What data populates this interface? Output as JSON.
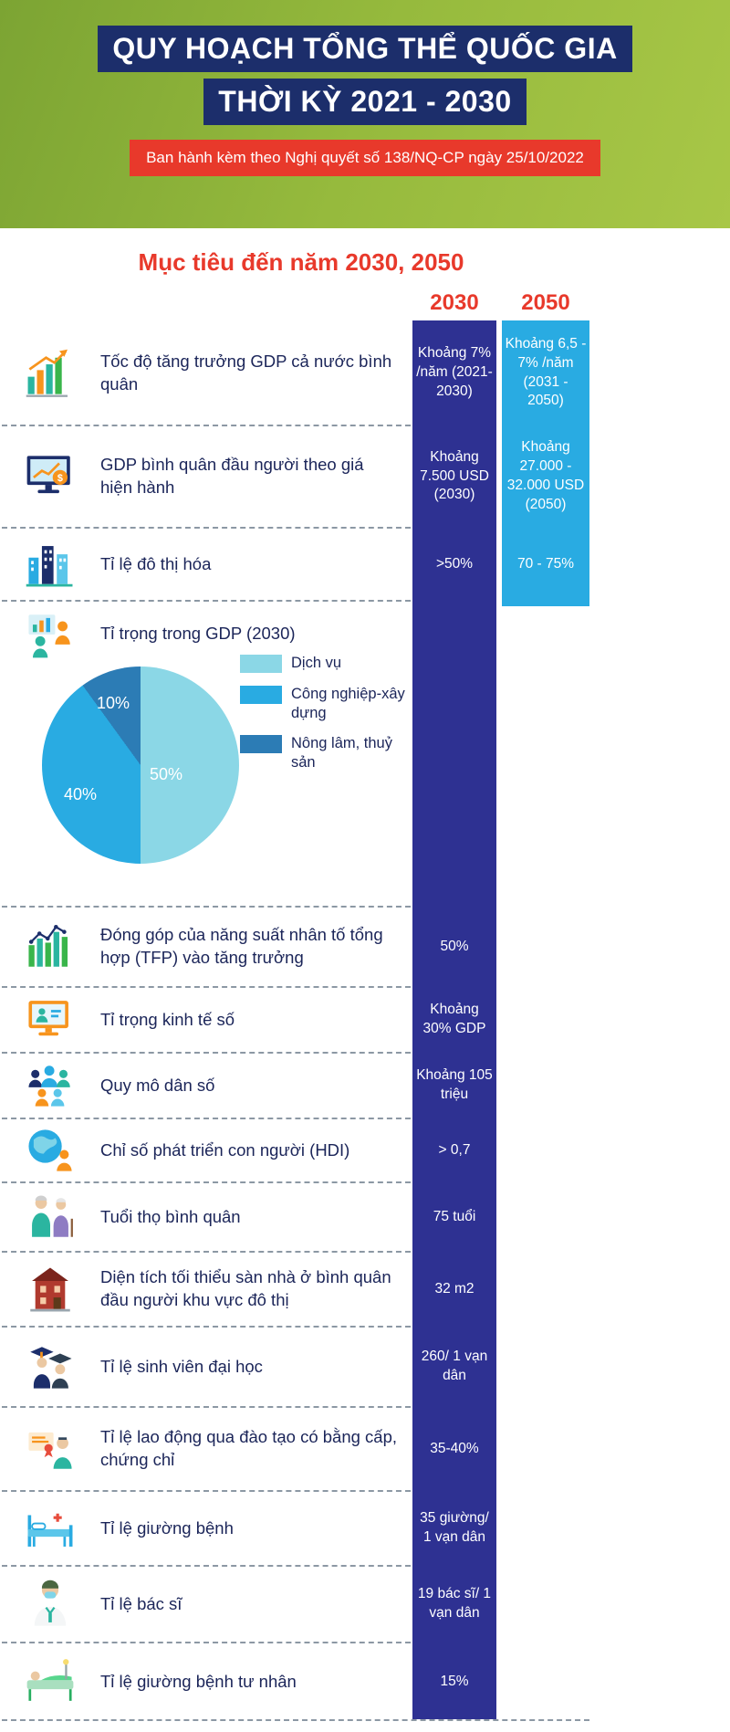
{
  "header": {
    "title_line1": "QUY HOẠCH TỔNG THỂ QUỐC GIA",
    "title_line2": "THỜI KỲ 2021 - 2030",
    "subtitle": "Ban hành kèm theo Nghị quyết số 138/NQ-CP ngày 25/10/2022"
  },
  "section": {
    "title": "Mục tiêu đến năm 2030, 2050",
    "col_2030": "2030",
    "col_2050": "2050"
  },
  "colors": {
    "header_green": "#96BA3D",
    "title_bg_navy": "#1C2E6B",
    "accent_red": "#E8392B",
    "col2030_bg": "#2E3192",
    "col2050_bg": "#29ABE2",
    "label_text": "#1B2559",
    "pie_dich_vu": "#8BD7E6",
    "pie_cong_nghiep": "#29ABE2",
    "pie_nong_lam": "#2C7CB5"
  },
  "rows": [
    {
      "icon": "gdp-growth-icon",
      "label": "Tốc độ tăng trưởng GDP cả nước bình quân",
      "v2030": "Khoảng 7% /năm (2021-2030)",
      "v2050": "Khoảng 6,5 - 7% /năm (2031 - 2050)"
    },
    {
      "icon": "gdp-per-capita-icon",
      "label": "GDP bình quân đầu người theo giá hiện hành",
      "v2030": "Khoảng 7.500 USD (2030)",
      "v2050": "Khoảng 27.000 - 32.000 USD (2050)"
    },
    {
      "icon": "urbanization-icon",
      "label": "Tỉ lệ đô thị hóa",
      "v2030": ">50%",
      "v2050": "70 - 75%"
    },
    {
      "icon": "gdp-structure-icon",
      "label": "Tỉ trọng trong GDP (2030)",
      "v2030": "",
      "v2050": "",
      "pie": true
    },
    {
      "icon": "tfp-icon",
      "label": "Đóng góp của năng suất nhân tố tổng hợp (TFP) vào tăng trưởng",
      "v2030": "50%"
    },
    {
      "icon": "digital-economy-icon",
      "label": "Tỉ trọng kinh tế số",
      "v2030": "Khoảng 30% GDP"
    },
    {
      "icon": "population-icon",
      "label": "Quy mô dân số",
      "v2030": "Khoảng 105 triệu"
    },
    {
      "icon": "hdi-icon",
      "label": "Chỉ số phát triển con người (HDI)",
      "v2030": "> 0,7"
    },
    {
      "icon": "life-expectancy-icon",
      "label": "Tuổi thọ bình quân",
      "v2030": "75 tuổi"
    },
    {
      "icon": "urban-housing-icon",
      "label": "Diện tích tối thiểu sàn nhà ở bình quân đầu người khu vực đô thị",
      "v2030": "32 m2"
    },
    {
      "icon": "university-students-icon",
      "label": "Tỉ lệ sinh viên đại học",
      "v2030": "260/ 1 vạn dân"
    },
    {
      "icon": "trained-labor-icon",
      "label": "Tỉ lệ lao động qua đào tạo có bằng cấp, chứng chỉ",
      "v2030": "35-40%"
    },
    {
      "icon": "hospital-beds-icon",
      "label": "Tỉ lệ giường bệnh",
      "v2030": "35 giường/ 1 vạn dân"
    },
    {
      "icon": "doctors-icon",
      "label": "Tỉ lệ bác sĩ",
      "v2030": "19 bác sĩ/ 1 vạn dân"
    },
    {
      "icon": "private-hospital-beds-icon",
      "label": "Tỉ lệ giường bệnh tư nhân",
      "v2030": "15%"
    }
  ],
  "chart_data": [
    {
      "type": "pie",
      "title": "Tỉ trọng trong GDP (2030)",
      "labels": [
        "Dịch vụ",
        "Công nghiệp-xây dựng",
        "Nông lâm, thuỷ sản"
      ],
      "values": [
        50,
        40,
        10
      ],
      "value_labels": [
        "50%",
        "40%",
        "10%"
      ],
      "colors": [
        "#8BD7E6",
        "#29ABE2",
        "#2C7CB5"
      ],
      "legend_position": "right"
    },
    {
      "type": "table",
      "columns": [
        "",
        "2030",
        "2050"
      ],
      "rows": [
        [
          "Tốc độ tăng trưởng GDP cả nước bình quân",
          "Khoảng 7% /năm (2021-2030)",
          "Khoảng 6,5 - 7% /năm (2031 - 2050)"
        ],
        [
          "GDP bình quân đầu người theo giá hiện hành",
          "Khoảng 7.500 USD (2030)",
          "Khoảng 27.000 - 32.000 USD (2050)"
        ],
        [
          "Tỉ lệ đô thị hóa",
          ">50%",
          "70 - 75%"
        ],
        [
          "Tỉ trọng trong GDP (2030)",
          "Dịch vụ 50%, Công nghiệp-xây dựng 40%, Nông lâm, thuỷ sản 10%",
          ""
        ],
        [
          "Đóng góp của năng suất nhân tố tổng hợp (TFP) vào tăng trưởng",
          "50%",
          ""
        ],
        [
          "Tỉ trọng kinh tế số",
          "Khoảng 30% GDP",
          ""
        ],
        [
          "Quy mô dân số",
          "Khoảng 105 triệu",
          ""
        ],
        [
          "Chỉ số phát triển con người (HDI)",
          "> 0,7",
          ""
        ],
        [
          "Tuổi thọ bình quân",
          "75 tuổi",
          ""
        ],
        [
          "Diện tích tối thiểu sàn nhà ở bình quân đầu người khu vực đô thị",
          "32 m2",
          ""
        ],
        [
          "Tỉ lệ sinh viên đại học",
          "260/ 1 vạn dân",
          ""
        ],
        [
          "Tỉ lệ lao động qua đào tạo có bằng cấp, chứng chỉ",
          "35-40%",
          ""
        ],
        [
          "Tỉ lệ giường bệnh",
          "35 giường/ 1 vạn dân",
          ""
        ],
        [
          "Tỉ lệ bác sĩ",
          "19 bác sĩ/ 1 vạn dân",
          ""
        ],
        [
          "Tỉ lệ giường bệnh tư nhân",
          "15%",
          ""
        ]
      ]
    }
  ]
}
